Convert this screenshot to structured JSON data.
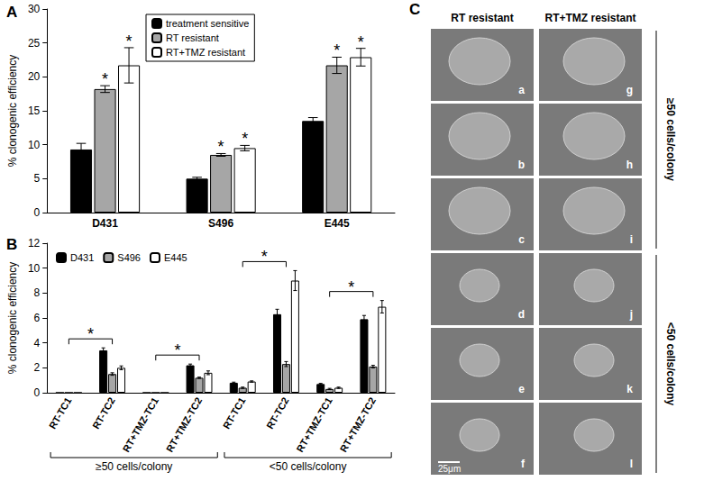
{
  "chart_data": [
    {
      "type": "bar",
      "title": "A",
      "categories": [
        "D431",
        "S496",
        "E445"
      ],
      "ylabel": "% clonogenic efficiency",
      "ylim": [
        0,
        30
      ],
      "yticks": [
        0,
        5,
        10,
        15,
        20,
        25,
        30
      ],
      "grid": false,
      "legend": "upper center",
      "series": [
        {
          "name": "treatment sensitive",
          "color": "#000000",
          "values": [
            9.3,
            5.0,
            13.5
          ],
          "errors": [
            0.9,
            0.2,
            0.5
          ]
        },
        {
          "name": "RT resistant",
          "color": "#a6a6a6",
          "values": [
            18.2,
            8.5,
            21.7
          ],
          "errors": [
            0.5,
            0.2,
            1.2
          ]
        },
        {
          "name": "RT+TMZ resistant",
          "color": "#ffffff",
          "values": [
            21.7,
            9.5,
            22.9
          ],
          "errors": [
            2.6,
            0.4,
            1.3
          ]
        }
      ],
      "annotations": [
        {
          "category": "D431",
          "series": "RT resistant",
          "text": "*"
        },
        {
          "category": "D431",
          "series": "RT+TMZ resistant",
          "text": "*"
        },
        {
          "category": "S496",
          "series": "RT resistant",
          "text": "*"
        },
        {
          "category": "S496",
          "series": "RT+TMZ resistant",
          "text": "*"
        },
        {
          "category": "E445",
          "series": "RT resistant",
          "text": "*"
        },
        {
          "category": "E445",
          "series": "RT+TMZ resistant",
          "text": "*"
        }
      ]
    },
    {
      "type": "bar",
      "title": "B",
      "categories": [
        "RT-TC1",
        "RT-TC2",
        "RT+TMZ-TC1",
        "RT+TMZ-TC2",
        "RT-TC1",
        "RT-TC2",
        "RT+TMZ-TC1",
        "RT+TMZ-TC2"
      ],
      "ylabel": "% clonogenic efficiency",
      "ylim": [
        0,
        12
      ],
      "yticks": [
        0,
        2,
        4,
        6,
        8,
        10,
        12
      ],
      "grid": false,
      "legend": "upper left",
      "series": [
        {
          "name": "D431",
          "color": "#000000",
          "values": [
            0,
            3.4,
            0,
            2.2,
            0.8,
            6.3,
            0.7,
            5.9
          ],
          "errors": [
            0,
            0.2,
            0,
            0.1,
            0.05,
            0.4,
            0.05,
            0.3
          ]
        },
        {
          "name": "S496",
          "color": "#a6a6a6",
          "values": [
            0,
            1.5,
            0,
            1.2,
            0.4,
            2.3,
            0.3,
            2.1
          ],
          "errors": [
            0,
            0.1,
            0,
            0.05,
            0.05,
            0.2,
            0.05,
            0.1
          ]
        },
        {
          "name": "E445",
          "color": "#ffffff",
          "values": [
            0,
            2.0,
            0,
            1.6,
            0.9,
            9.0,
            0.4,
            6.9
          ],
          "errors": [
            0,
            0.15,
            0,
            0.15,
            0.05,
            0.8,
            0.05,
            0.5
          ]
        }
      ],
      "annotations": [
        {
          "from": 0,
          "to": 1,
          "text": "*"
        },
        {
          "from": 2,
          "to": 3,
          "text": "*"
        },
        {
          "from": 4,
          "to": 5,
          "text": "*"
        },
        {
          "from": 6,
          "to": 7,
          "text": "*"
        }
      ],
      "groups": [
        {
          "label": "≥50 cells/colony",
          "from": 0,
          "to": 3
        },
        {
          "label": "<50 cells/colony",
          "from": 4,
          "to": 7
        }
      ]
    }
  ],
  "panel_c": {
    "title": "C",
    "columns": [
      "RT resistant",
      "RT+TMZ resistant"
    ],
    "letters": [
      [
        "a",
        "g"
      ],
      [
        "b",
        "h"
      ],
      [
        "c",
        "i"
      ],
      [
        "d",
        "j"
      ],
      [
        "e",
        "k"
      ],
      [
        "f",
        "l"
      ]
    ],
    "groups": [
      {
        "label": "≥50 cells/colony",
        "rows": 3
      },
      {
        "label": "<50 cells/colony",
        "rows": 3
      }
    ],
    "scale_bar": {
      "label": "25μm",
      "row": 5,
      "column": 0
    }
  }
}
